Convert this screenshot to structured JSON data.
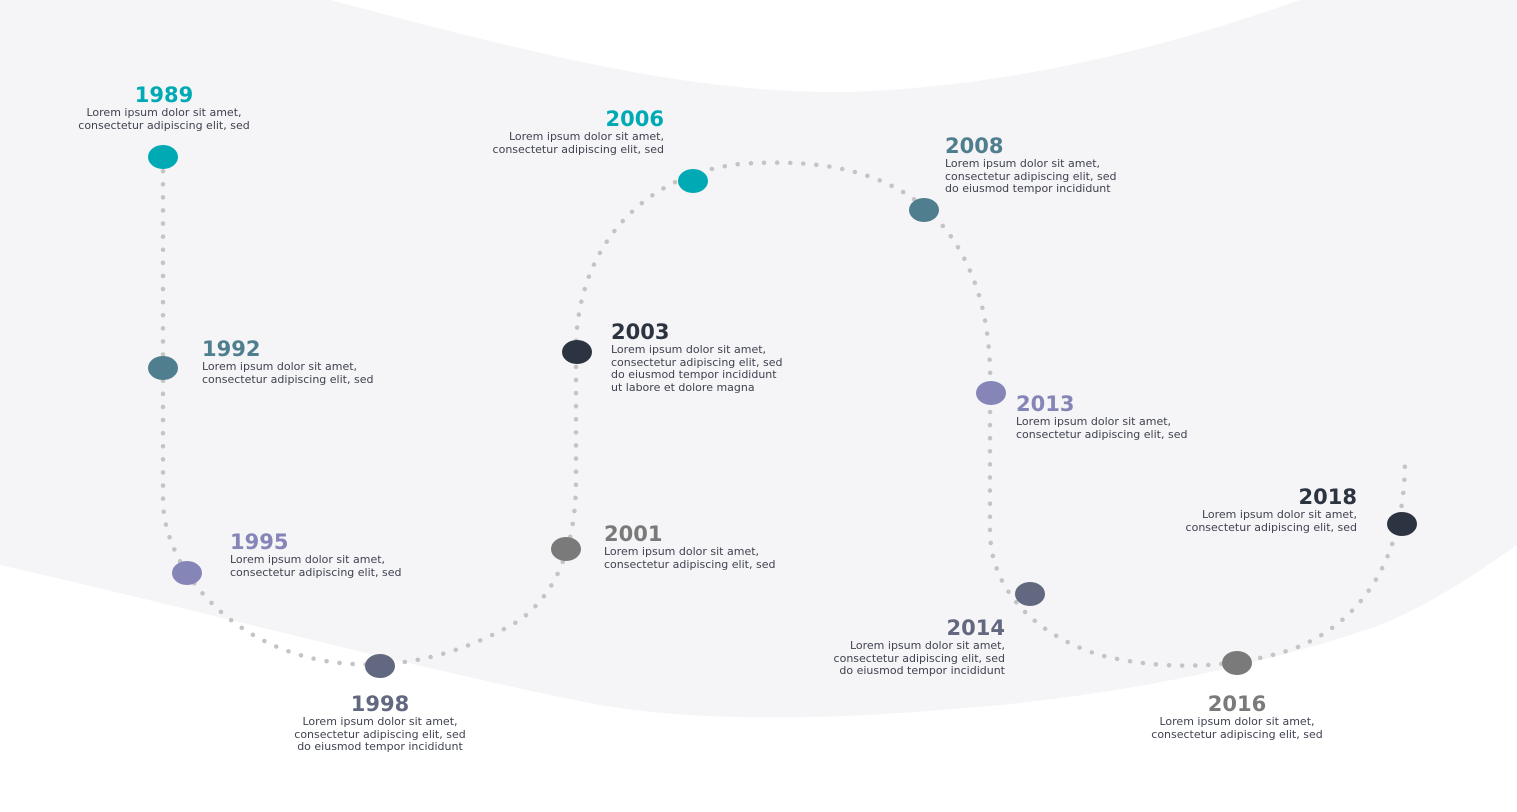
{
  "colors": {
    "teal": "#00aab5",
    "steel": "#4f7e8e",
    "lavender": "#8585b8",
    "slate": "#61687f",
    "dark": "#2b3440",
    "gray": "#7a7a7a",
    "dots": "#c4c4c4",
    "band": "#f5f4f6"
  },
  "milestones": [
    {
      "year": "1989",
      "color": "teal",
      "lines": [
        "Lorem ipsum dolor sit amet,",
        "consectetur adipiscing elit, sed"
      ]
    },
    {
      "year": "1992",
      "color": "steel",
      "lines": [
        "Lorem ipsum dolor sit amet,",
        "consectetur adipiscing elit, sed"
      ]
    },
    {
      "year": "1995",
      "color": "lavender",
      "lines": [
        "Lorem ipsum dolor sit amet,",
        "consectetur adipiscing elit, sed"
      ]
    },
    {
      "year": "1998",
      "color": "slate",
      "lines": [
        "Lorem ipsum dolor sit amet,",
        "consectetur adipiscing elit, sed",
        "do eiusmod tempor incididunt"
      ]
    },
    {
      "year": "2001",
      "color": "gray",
      "lines": [
        "Lorem ipsum dolor sit amet,",
        "consectetur adipiscing elit, sed"
      ]
    },
    {
      "year": "2003",
      "color": "dark",
      "lines": [
        "Lorem ipsum dolor sit amet,",
        "consectetur adipiscing elit, sed",
        "do eiusmod tempor incididunt",
        "ut labore et dolore magna"
      ]
    },
    {
      "year": "2006",
      "color": "teal",
      "lines": [
        "Lorem ipsum dolor sit amet,",
        "consectetur adipiscing elit, sed"
      ]
    },
    {
      "year": "2008",
      "color": "steel",
      "lines": [
        "Lorem ipsum dolor sit amet,",
        "consectetur adipiscing elit, sed",
        "do eiusmod tempor incididunt"
      ]
    },
    {
      "year": "2013",
      "color": "lavender",
      "lines": [
        "Lorem ipsum dolor sit amet,",
        "consectetur adipiscing elit, sed"
      ]
    },
    {
      "year": "2014",
      "color": "slate",
      "lines": [
        "Lorem ipsum dolor sit amet,",
        "consectetur adipiscing elit, sed",
        "do eiusmod tempor incididunt"
      ]
    },
    {
      "year": "2016",
      "color": "gray",
      "lines": [
        "Lorem ipsum dolor sit amet,",
        "consectetur adipiscing elit, sed"
      ]
    },
    {
      "year": "2018",
      "color": "dark",
      "lines": [
        "Lorem ipsum dolor sit amet,",
        "consectetur adipiscing elit, sed"
      ]
    }
  ]
}
